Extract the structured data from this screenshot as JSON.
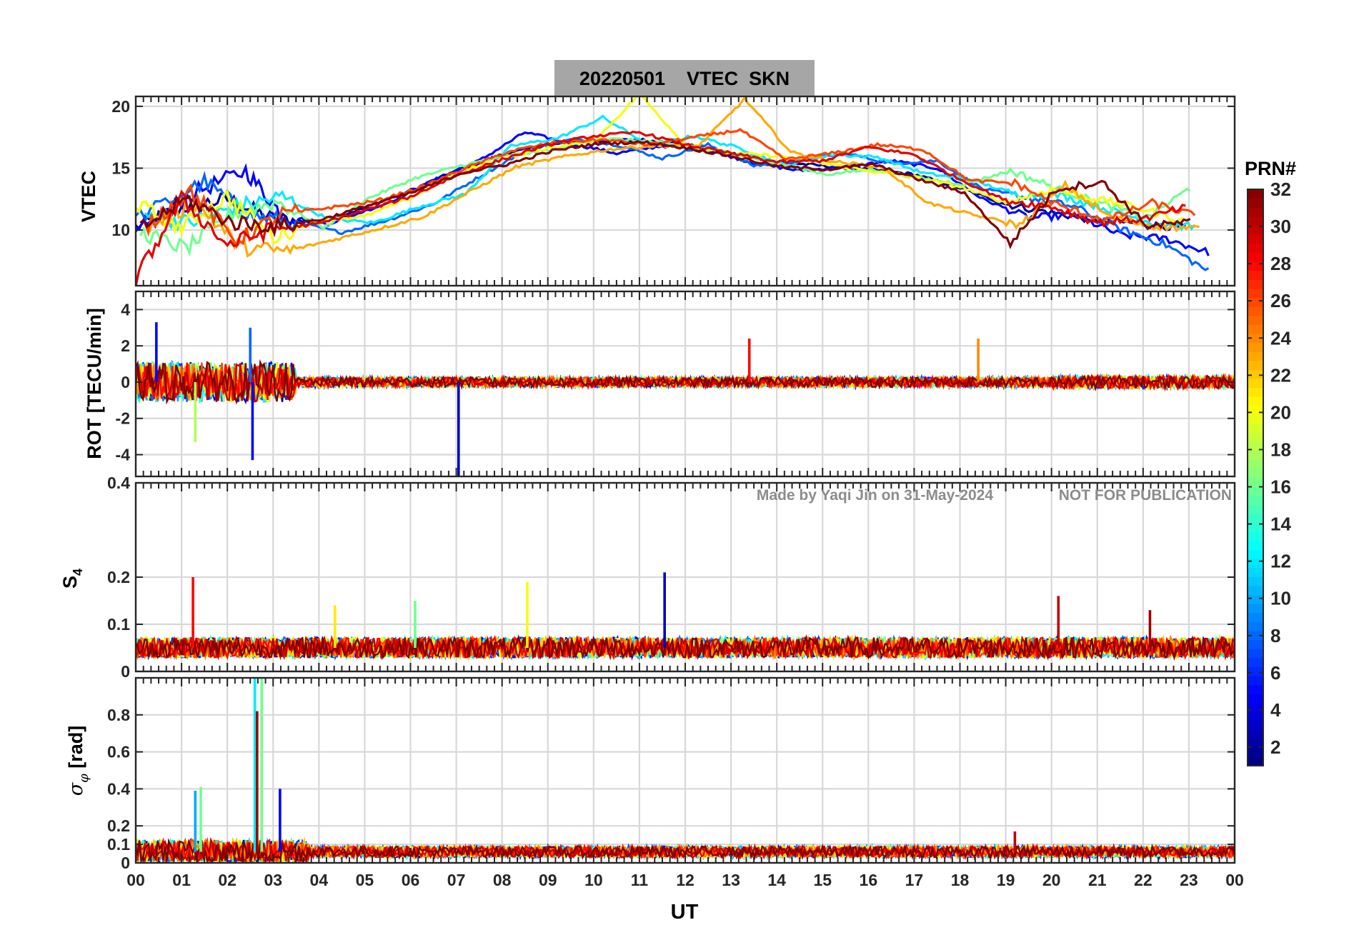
{
  "header": {
    "title": "20220501    VTEC  SKN",
    "title_bg": "#a6a6a6"
  },
  "watermark": {
    "made_by": "Made by Yaqi Jin on 31-May-2024",
    "notice": "NOT FOR PUBLICATION",
    "color": "#8c8c8c"
  },
  "colorbar": {
    "title": "PRN#",
    "colormap": "jet",
    "range": [
      1,
      32
    ],
    "ticks": [
      "2",
      "4",
      "6",
      "8",
      "10",
      "12",
      "14",
      "16",
      "18",
      "20",
      "22",
      "24",
      "26",
      "28",
      "30",
      "32"
    ]
  },
  "chart_data": [
    {
      "type": "line",
      "panel": "vtec",
      "ylabel": "VTEC",
      "ylim": [
        5.5,
        20.8
      ],
      "yticks": [
        "10",
        "15",
        "20"
      ],
      "xlim": [
        0,
        24
      ],
      "xlabel": "",
      "grid": true,
      "series": [
        {
          "prn": 2,
          "x": [
            0.0,
            1.0,
            2.0,
            3.0,
            4.0,
            5.0,
            6.0,
            7.0,
            8.0,
            9.0,
            10.0,
            11.0,
            12.0,
            13.0,
            14.0,
            15.0,
            16.0,
            17.0,
            18.0,
            19.0,
            20.0,
            21.0,
            22.0,
            23.0
          ],
          "y": [
            10.2,
            11.8,
            12.5,
            10.9,
            10.6,
            11.8,
            13.2,
            14.8,
            16.1,
            16.9,
            17.2,
            17.3,
            16.9,
            16.2,
            15.5,
            15.2,
            14.9,
            14.5,
            13.4,
            12.1,
            11.4,
            10.8,
            10.5,
            10.1
          ]
        },
        {
          "prn": 5,
          "x": [
            0.0,
            1.2,
            2.4,
            3.2,
            4.2,
            5.5,
            6.5,
            7.5,
            8.5,
            9.5,
            10.5,
            11.5,
            12.5,
            13.5,
            14.5,
            15.5,
            16.5,
            17.5,
            18.5,
            19.5,
            20.5,
            21.5,
            22.5,
            23.5
          ],
          "y": [
            9.6,
            12.9,
            14.8,
            11.2,
            10.5,
            12.2,
            14.0,
            15.6,
            17.9,
            17.0,
            16.2,
            16.8,
            16.5,
            15.4,
            14.8,
            15.1,
            15.6,
            15.0,
            12.5,
            11.0,
            11.2,
            9.6,
            9.3,
            8.1
          ]
        },
        {
          "prn": 8,
          "x": [
            0.0,
            1.5,
            2.5,
            3.5,
            4.5,
            5.5,
            6.5,
            7.5,
            8.5,
            9.5,
            10.5,
            11.5,
            12.5,
            13.5,
            14.5,
            15.5,
            16.5,
            17.5,
            18.5,
            19.5,
            20.5,
            21.5,
            22.5,
            23.5
          ],
          "y": [
            10.9,
            13.9,
            11.2,
            10.6,
            9.8,
            10.8,
            12.1,
            14.3,
            16.4,
            17.3,
            16.9,
            15.8,
            16.9,
            15.2,
            15.6,
            16.2,
            15.4,
            15.6,
            13.3,
            12.6,
            11.9,
            10.1,
            8.8,
            6.5
          ]
        },
        {
          "prn": 12,
          "x": [
            0.2,
            1.2,
            2.2,
            3.2,
            4.2,
            5.2,
            6.2,
            7.2,
            8.2,
            9.2,
            10.2,
            11.2,
            12.2,
            13.2,
            14.2,
            15.2,
            16.2,
            17.2,
            18.2,
            19.2,
            20.2,
            21.2,
            22.2,
            23.2
          ],
          "y": [
            11.2,
            10.6,
            11.9,
            12.7,
            10.9,
            10.6,
            11.9,
            12.9,
            16.8,
            17.4,
            19.1,
            16.9,
            17.6,
            16.6,
            15.2,
            16.1,
            15.9,
            14.6,
            14.1,
            12.9,
            12.8,
            11.7,
            10.6,
            10.2
          ]
        },
        {
          "prn": 16,
          "x": [
            0.1,
            1.1,
            2.1,
            3.1,
            4.1,
            5.1,
            6.1,
            7.1,
            8.1,
            9.1,
            10.1,
            11.1,
            12.1,
            13.1,
            14.1,
            15.1,
            16.1,
            17.1,
            18.1,
            19.1,
            20.1,
            21.1,
            22.1,
            23.1
          ],
          "y": [
            9.8,
            8.5,
            11.3,
            12.3,
            10.2,
            12.6,
            14.2,
            15.2,
            16.0,
            16.5,
            17.4,
            17.2,
            16.7,
            16.2,
            15.3,
            14.5,
            14.9,
            14.2,
            13.7,
            14.8,
            13.4,
            12.1,
            11.0,
            13.6
          ]
        },
        {
          "prn": 20,
          "x": [
            0.0,
            1.0,
            2.0,
            3.0,
            4.0,
            5.0,
            6.0,
            7.0,
            8.0,
            9.0,
            10.0,
            11.0,
            12.0,
            13.0,
            14.0,
            15.0,
            16.0,
            17.0,
            18.0,
            19.0,
            20.0,
            21.0,
            22.0,
            23.0
          ],
          "y": [
            12.1,
            10.2,
            12.7,
            9.4,
            10.8,
            11.1,
            12.6,
            14.6,
            15.8,
            16.6,
            17.1,
            21.0,
            16.9,
            16.2,
            16.0,
            15.4,
            14.8,
            14.3,
            13.5,
            12.2,
            13.3,
            12.5,
            11.7,
            10.6
          ]
        },
        {
          "prn": 23,
          "x": [
            0.3,
            1.3,
            2.3,
            3.3,
            4.3,
            5.3,
            6.3,
            7.3,
            8.3,
            9.3,
            10.3,
            11.3,
            12.3,
            13.3,
            14.3,
            15.3,
            16.3,
            17.3,
            18.3,
            19.3,
            20.3,
            21.3,
            22.3,
            23.3
          ],
          "y": [
            10.3,
            12.2,
            8.6,
            8.3,
            9.2,
            10.1,
            11.1,
            13.1,
            15.1,
            15.9,
            16.5,
            16.8,
            16.8,
            20.6,
            16.3,
            15.5,
            15.1,
            12.2,
            11.2,
            10.4,
            13.6,
            11.0,
            10.3,
            10.1
          ]
        },
        {
          "prn": 26,
          "x": [
            0.2,
            1.2,
            2.2,
            3.2,
            4.2,
            5.2,
            6.2,
            7.2,
            8.2,
            9.2,
            10.2,
            11.2,
            12.2,
            13.2,
            14.2,
            15.2,
            16.2,
            17.2,
            18.2,
            19.2,
            20.2,
            21.2,
            22.2,
            23.2
          ],
          "y": [
            10.2,
            13.2,
            9.1,
            11.3,
            11.8,
            12.3,
            13.4,
            15.0,
            16.4,
            17.1,
            17.3,
            16.9,
            17.5,
            18.1,
            15.7,
            16.2,
            16.9,
            16.5,
            14.0,
            13.8,
            11.9,
            10.8,
            12.2,
            11.1
          ]
        },
        {
          "prn": 29,
          "x": [
            0.0,
            1.0,
            2.0,
            3.0,
            4.0,
            5.0,
            6.0,
            7.0,
            8.0,
            9.0,
            10.0,
            11.0,
            12.0,
            13.0,
            14.0,
            15.0,
            16.0,
            17.0,
            18.0,
            19.0,
            20.0,
            21.0,
            22.0,
            23.0
          ],
          "y": [
            6.0,
            12.5,
            8.8,
            10.1,
            10.5,
            11.6,
            12.7,
            14.4,
            15.7,
            16.9,
            17.6,
            17.9,
            16.9,
            16.2,
            15.5,
            15.6,
            16.7,
            16.1,
            14.1,
            12.4,
            11.9,
            10.6,
            10.9,
            11.9
          ]
        },
        {
          "prn": 32,
          "x": [
            0.1,
            1.1,
            2.1,
            3.1,
            4.1,
            5.1,
            6.1,
            7.1,
            8.1,
            9.1,
            10.1,
            11.1,
            12.1,
            13.1,
            14.1,
            15.1,
            16.1,
            17.1,
            18.1,
            19.1,
            20.1,
            21.1,
            22.1,
            23.1
          ],
          "y": [
            10.1,
            12.5,
            10.6,
            10.3,
            10.9,
            12.0,
            13.1,
            14.6,
            15.3,
            16.4,
            17.0,
            17.1,
            16.6,
            15.9,
            15.1,
            14.9,
            15.3,
            14.1,
            13.0,
            8.9,
            13.3,
            13.9,
            10.3,
            10.7
          ]
        }
      ]
    },
    {
      "type": "line",
      "panel": "rot",
      "ylabel": "ROT [TECU/min]",
      "ylim": [
        -5.2,
        5.0
      ],
      "yticks": [
        "-4",
        "-2",
        "0",
        "2",
        "4"
      ],
      "xlim": [
        0,
        24
      ],
      "grid": true,
      "spikes": [
        {
          "prn": 5,
          "x": 0.45,
          "y": 3.3
        },
        {
          "prn": 3,
          "x": 7.05,
          "y": -5.2
        },
        {
          "prn": 5,
          "x": 2.55,
          "y": -4.3
        },
        {
          "prn": 8,
          "x": 2.5,
          "y": 3.0
        },
        {
          "prn": 18,
          "x": 1.3,
          "y": -3.3
        },
        {
          "prn": 28,
          "x": 13.4,
          "y": 2.4
        },
        {
          "prn": 24,
          "x": 18.4,
          "y": 2.4
        }
      ]
    },
    {
      "type": "line",
      "panel": "s4",
      "ylabel": "S4",
      "ylim": [
        0,
        0.4
      ],
      "yticks": [
        "0",
        "0.1",
        "0.2",
        "0.4"
      ],
      "xlim": [
        0,
        24
      ],
      "grid": true,
      "spikes": [
        {
          "prn": 28,
          "x": 1.25,
          "y": 0.2
        },
        {
          "prn": 20,
          "x": 8.55,
          "y": 0.19
        },
        {
          "prn": 3,
          "x": 11.55,
          "y": 0.21
        },
        {
          "prn": 30,
          "x": 20.15,
          "y": 0.16
        },
        {
          "prn": 31,
          "x": 22.15,
          "y": 0.13
        },
        {
          "prn": 21,
          "x": 4.35,
          "y": 0.14
        },
        {
          "prn": 16,
          "x": 6.1,
          "y": 0.15
        }
      ]
    },
    {
      "type": "line",
      "panel": "sigma_phi",
      "ylabel": "σφ [rad]",
      "ylim": [
        0,
        1.0
      ],
      "yticks": [
        "0",
        "0.1",
        "0.2",
        "0.4",
        "0.6",
        "0.8"
      ],
      "xlim": [
        0,
        24
      ],
      "xlabel": "UT",
      "xticks": [
        "00",
        "01",
        "02",
        "03",
        "04",
        "05",
        "06",
        "07",
        "08",
        "09",
        "10",
        "11",
        "12",
        "13",
        "14",
        "15",
        "16",
        "17",
        "18",
        "19",
        "20",
        "21",
        "22",
        "23",
        "00"
      ],
      "grid": true,
      "spikes": [
        {
          "prn": 12,
          "x": 2.6,
          "y": 1.0
        },
        {
          "prn": 16,
          "x": 2.75,
          "y": 1.0
        },
        {
          "prn": 31,
          "x": 2.65,
          "y": 0.82
        },
        {
          "prn": 10,
          "x": 1.3,
          "y": 0.39
        },
        {
          "prn": 16,
          "x": 1.42,
          "y": 0.41
        },
        {
          "prn": 5,
          "x": 3.15,
          "y": 0.4
        },
        {
          "prn": 30,
          "x": 19.2,
          "y": 0.17
        }
      ]
    }
  ]
}
